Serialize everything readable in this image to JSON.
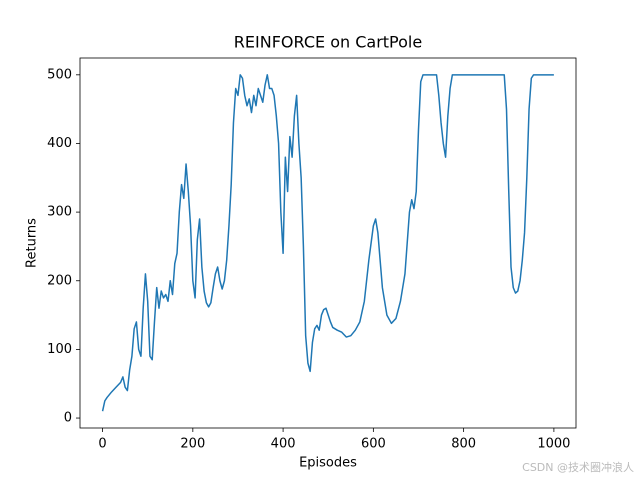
{
  "chart_data": {
    "type": "line",
    "title": "REINFORCE on CartPole",
    "x_label": "Episodes",
    "y_label": "Returns",
    "color": "#1f77b4",
    "xlim": [
      -50,
      1049
    ],
    "ylim": [
      -14.5,
      524.5
    ],
    "xticks": [
      0,
      200,
      400,
      600,
      800,
      1000
    ],
    "yticks": [
      0,
      100,
      200,
      300,
      400,
      500
    ],
    "x": [
      0,
      5,
      10,
      20,
      30,
      40,
      45,
      50,
      55,
      60,
      65,
      70,
      75,
      80,
      85,
      90,
      95,
      100,
      105,
      110,
      115,
      120,
      125,
      130,
      135,
      140,
      145,
      150,
      155,
      160,
      165,
      170,
      175,
      180,
      185,
      190,
      195,
      200,
      205,
      210,
      215,
      220,
      225,
      230,
      235,
      240,
      245,
      250,
      255,
      260,
      265,
      270,
      275,
      280,
      285,
      290,
      295,
      300,
      305,
      310,
      315,
      320,
      325,
      330,
      335,
      340,
      345,
      350,
      355,
      360,
      365,
      370,
      375,
      380,
      385,
      390,
      395,
      400,
      405,
      410,
      415,
      420,
      425,
      430,
      435,
      440,
      445,
      450,
      455,
      460,
      465,
      470,
      475,
      480,
      485,
      490,
      495,
      500,
      505,
      510,
      520,
      530,
      540,
      550,
      560,
      570,
      580,
      590,
      600,
      605,
      610,
      620,
      630,
      640,
      650,
      660,
      670,
      680,
      685,
      690,
      695,
      700,
      705,
      710,
      720,
      730,
      740,
      745,
      750,
      755,
      760,
      765,
      770,
      775,
      800,
      850,
      890,
      895,
      900,
      905,
      910,
      915,
      920,
      925,
      930,
      935,
      940,
      945,
      950,
      955,
      1000
    ],
    "values": [
      10,
      25,
      30,
      38,
      45,
      52,
      60,
      45,
      40,
      70,
      90,
      130,
      140,
      100,
      90,
      160,
      210,
      170,
      90,
      85,
      140,
      190,
      160,
      185,
      175,
      180,
      170,
      200,
      180,
      225,
      240,
      300,
      340,
      320,
      370,
      330,
      280,
      200,
      175,
      260,
      290,
      220,
      185,
      168,
      162,
      168,
      190,
      210,
      220,
      200,
      188,
      200,
      230,
      280,
      340,
      430,
      480,
      470,
      500,
      495,
      470,
      455,
      465,
      445,
      470,
      455,
      480,
      470,
      460,
      485,
      500,
      480,
      480,
      470,
      440,
      400,
      300,
      240,
      380,
      330,
      410,
      380,
      440,
      470,
      400,
      350,
      250,
      120,
      80,
      68,
      110,
      130,
      135,
      128,
      150,
      158,
      160,
      150,
      140,
      132,
      128,
      125,
      118,
      120,
      128,
      140,
      170,
      230,
      280,
      290,
      270,
      190,
      150,
      138,
      145,
      170,
      210,
      300,
      318,
      305,
      330,
      420,
      490,
      500,
      500,
      500,
      500,
      470,
      430,
      400,
      380,
      440,
      480,
      500,
      500,
      500,
      500,
      450,
      330,
      220,
      190,
      182,
      185,
      200,
      230,
      270,
      350,
      450,
      495,
      500,
      500
    ]
  },
  "watermark": "CSDN @技术圈冲浪人"
}
